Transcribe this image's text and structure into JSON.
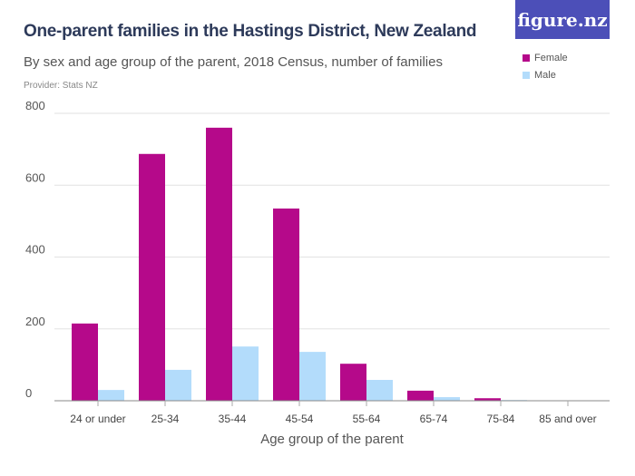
{
  "logo": "figure.nz",
  "chart_data": {
    "type": "bar",
    "title": "One-parent families in the Hastings District, New Zealand",
    "subtitle": "By sex and age group of the parent, 2018 Census, number of families",
    "provider": "Provider: Stats NZ",
    "xlabel": "Age group of the parent",
    "ylabel": "",
    "ylim": [
      0,
      800
    ],
    "yticks": [
      0,
      200,
      400,
      600,
      800
    ],
    "grid": true,
    "legend_position": "top-right",
    "categories": [
      "24 or under",
      "25-34",
      "35-44",
      "45-54",
      "55-64",
      "65-74",
      "75-84",
      "85 and over"
    ],
    "series": [
      {
        "name": "Female",
        "color": "#b5098a",
        "values": [
          215,
          687,
          760,
          535,
          103,
          28,
          7,
          0
        ]
      },
      {
        "name": "Male",
        "color": "#b3dcfb",
        "values": [
          30,
          86,
          151,
          136,
          58,
          10,
          2,
          0
        ]
      }
    ]
  }
}
